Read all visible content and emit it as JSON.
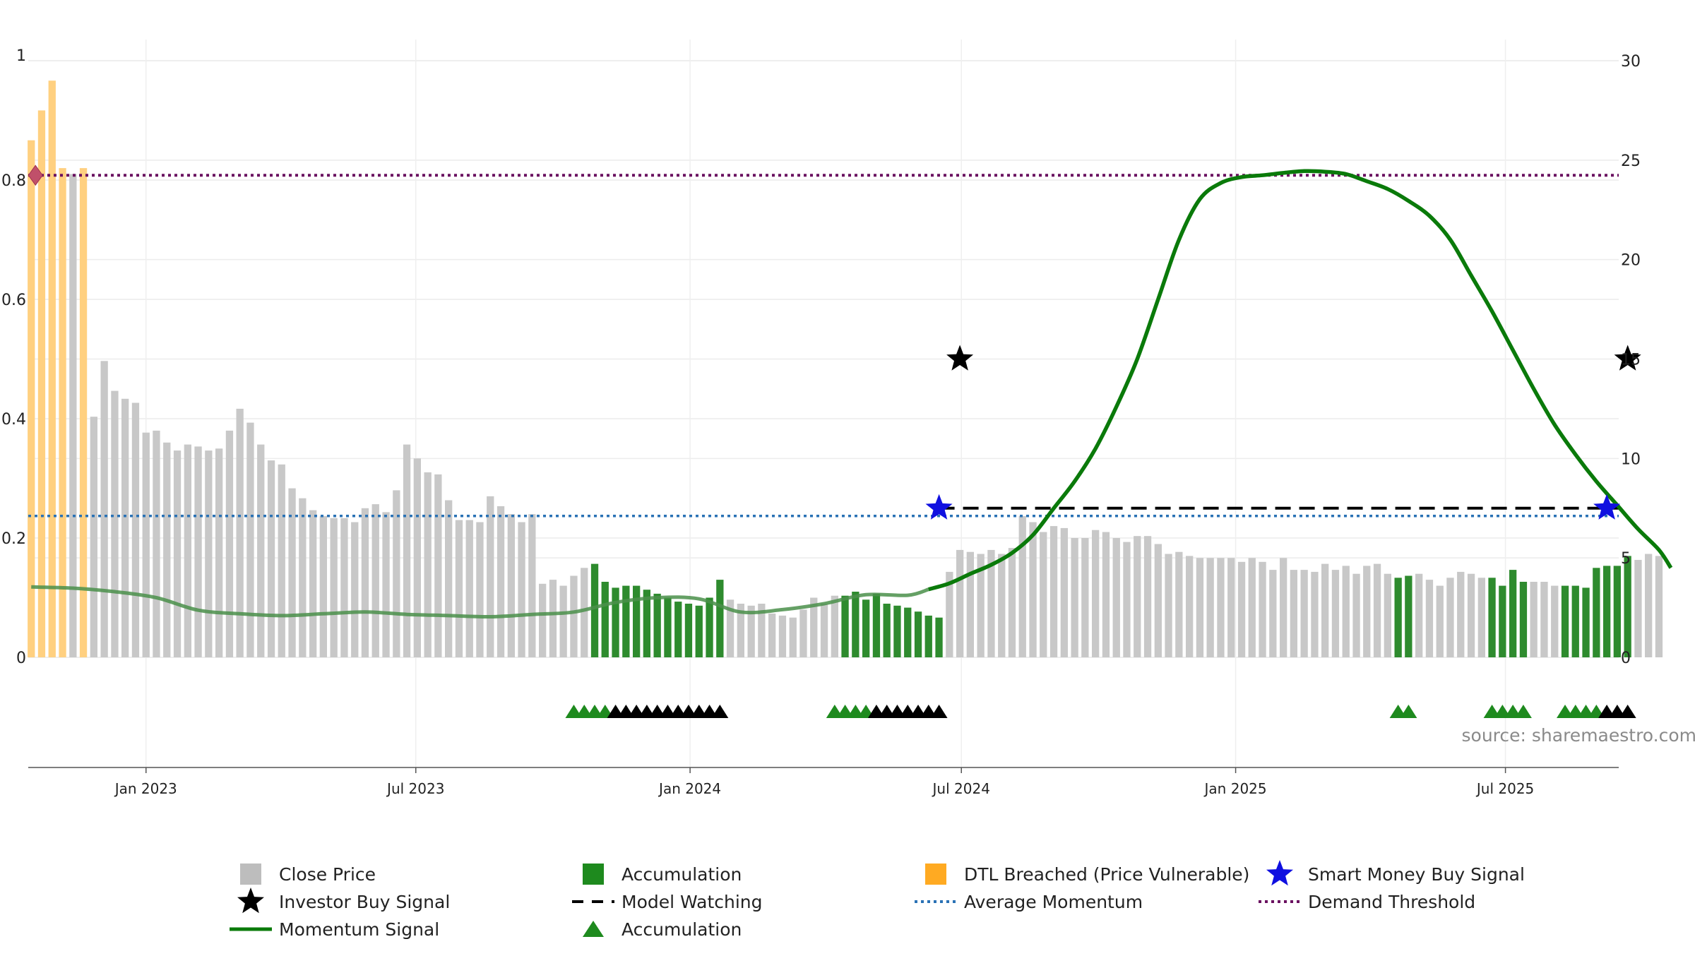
{
  "chart_data": {
    "type": "bar",
    "source_text": "source: sharemaestro.com",
    "left_axis": {
      "ylim": [
        0,
        1
      ],
      "ticks": [
        0,
        0.2,
        0.4,
        0.6,
        0.8,
        1
      ],
      "tick_labels": [
        "0",
        "0.2",
        "0.4",
        "0.6",
        "0.8",
        "1"
      ]
    },
    "right_axis": {
      "ylim": [
        0,
        30
      ],
      "ticks": [
        0,
        5,
        10,
        15,
        20,
        25,
        30
      ],
      "tick_labels": [
        "0",
        "5",
        "10",
        "15",
        "20",
        "25",
        "30"
      ]
    },
    "x_axis": {
      "range": [
        "2022-10-14",
        "2025-09-15"
      ],
      "ticks": [
        "2023-01-01",
        "2023-07-01",
        "2024-01-01",
        "2024-07-01",
        "2025-01-01",
        "2025-07-01"
      ],
      "tick_labels": [
        "Jan 2023",
        "Jul 2023",
        "Jan 2024",
        "Jul 2024",
        "Jan 2025",
        "Jul 2025"
      ]
    },
    "grid": true,
    "colors": {
      "close": "#c8c8c8",
      "accumulation": "#2e8b2e",
      "dtl": "#ffd080",
      "momentum": "#0a7a0a",
      "momentum_faded": "#4a8f4a",
      "smart_money": "#1010e0",
      "investor": "#000000",
      "model_watching": "#000000",
      "average_momentum": "#2a72b5",
      "demand_threshold": "#6a1060",
      "breach_marker": "#c0506a"
    },
    "bars": [
      [
        "2022-10-16",
        26.0,
        "dtl"
      ],
      [
        "2022-10-23",
        27.5,
        "dtl"
      ],
      [
        "2022-10-30",
        29.0,
        "dtl"
      ],
      [
        "2022-11-06",
        24.6,
        "dtl"
      ],
      [
        "2022-11-13",
        24.3,
        "close"
      ],
      [
        "2022-11-20",
        24.6,
        "dtl"
      ],
      [
        "2022-11-27",
        12.1,
        "close"
      ],
      [
        "2022-12-04",
        14.9,
        "close"
      ],
      [
        "2022-12-11",
        13.4,
        "close"
      ],
      [
        "2022-12-18",
        13.0,
        "close"
      ],
      [
        "2022-12-25",
        12.8,
        "close"
      ],
      [
        "2023-01-01",
        11.3,
        "close"
      ],
      [
        "2023-01-08",
        11.4,
        "close"
      ],
      [
        "2023-01-15",
        10.8,
        "close"
      ],
      [
        "2023-01-22",
        10.4,
        "close"
      ],
      [
        "2023-01-29",
        10.7,
        "close"
      ],
      [
        "2023-02-05",
        10.6,
        "close"
      ],
      [
        "2023-02-12",
        10.4,
        "close"
      ],
      [
        "2023-02-19",
        10.5,
        "close"
      ],
      [
        "2023-02-26",
        11.4,
        "close"
      ],
      [
        "2023-03-05",
        12.5,
        "close"
      ],
      [
        "2023-03-12",
        11.8,
        "close"
      ],
      [
        "2023-03-19",
        10.7,
        "close"
      ],
      [
        "2023-03-26",
        9.9,
        "close"
      ],
      [
        "2023-04-02",
        9.7,
        "close"
      ],
      [
        "2023-04-09",
        8.5,
        "close"
      ],
      [
        "2023-04-16",
        8.0,
        "close"
      ],
      [
        "2023-04-23",
        7.4,
        "close"
      ],
      [
        "2023-04-30",
        7.1,
        "close"
      ],
      [
        "2023-05-07",
        7.0,
        "close"
      ],
      [
        "2023-05-14",
        7.0,
        "close"
      ],
      [
        "2023-05-21",
        6.8,
        "close"
      ],
      [
        "2023-05-28",
        7.5,
        "close"
      ],
      [
        "2023-06-04",
        7.7,
        "close"
      ],
      [
        "2023-06-11",
        7.3,
        "close"
      ],
      [
        "2023-06-18",
        8.4,
        "close"
      ],
      [
        "2023-06-25",
        10.7,
        "close"
      ],
      [
        "2023-07-02",
        10.0,
        "close"
      ],
      [
        "2023-07-09",
        9.3,
        "close"
      ],
      [
        "2023-07-16",
        9.2,
        "close"
      ],
      [
        "2023-07-23",
        7.9,
        "close"
      ],
      [
        "2023-07-30",
        6.9,
        "close"
      ],
      [
        "2023-08-06",
        6.9,
        "close"
      ],
      [
        "2023-08-13",
        6.8,
        "close"
      ],
      [
        "2023-08-20",
        8.1,
        "close"
      ],
      [
        "2023-08-27",
        7.6,
        "close"
      ],
      [
        "2023-09-03",
        7.2,
        "close"
      ],
      [
        "2023-09-10",
        6.8,
        "close"
      ],
      [
        "2023-09-17",
        7.2,
        "close"
      ],
      [
        "2023-09-24",
        3.7,
        "close"
      ],
      [
        "2023-10-01",
        3.9,
        "close"
      ],
      [
        "2023-10-08",
        3.6,
        "close"
      ],
      [
        "2023-10-15",
        4.1,
        "close"
      ],
      [
        "2023-10-22",
        4.5,
        "close"
      ],
      [
        "2023-10-29",
        4.7,
        "accumulation"
      ],
      [
        "2023-11-05",
        3.8,
        "accumulation"
      ],
      [
        "2023-11-12",
        3.5,
        "accumulation"
      ],
      [
        "2023-11-19",
        3.6,
        "accumulation"
      ],
      [
        "2023-11-26",
        3.6,
        "accumulation"
      ],
      [
        "2023-12-03",
        3.4,
        "accumulation"
      ],
      [
        "2023-12-10",
        3.2,
        "accumulation"
      ],
      [
        "2023-12-17",
        3.0,
        "accumulation"
      ],
      [
        "2023-12-24",
        2.8,
        "accumulation"
      ],
      [
        "2023-12-31",
        2.7,
        "accumulation"
      ],
      [
        "2024-01-07",
        2.6,
        "accumulation"
      ],
      [
        "2024-01-14",
        3.0,
        "accumulation"
      ],
      [
        "2024-01-21",
        3.9,
        "accumulation"
      ],
      [
        "2024-01-28",
        2.9,
        "close"
      ],
      [
        "2024-02-04",
        2.7,
        "close"
      ],
      [
        "2024-02-11",
        2.6,
        "close"
      ],
      [
        "2024-02-18",
        2.7,
        "close"
      ],
      [
        "2024-02-25",
        2.2,
        "close"
      ],
      [
        "2024-03-03",
        2.1,
        "close"
      ],
      [
        "2024-03-10",
        2.0,
        "close"
      ],
      [
        "2024-03-17",
        2.4,
        "close"
      ],
      [
        "2024-03-24",
        3.0,
        "close"
      ],
      [
        "2024-03-31",
        2.7,
        "close"
      ],
      [
        "2024-04-07",
        3.1,
        "close"
      ],
      [
        "2024-04-14",
        3.1,
        "accumulation"
      ],
      [
        "2024-04-21",
        3.3,
        "accumulation"
      ],
      [
        "2024-04-28",
        2.9,
        "accumulation"
      ],
      [
        "2024-05-05",
        3.2,
        "accumulation"
      ],
      [
        "2024-05-12",
        2.7,
        "accumulation"
      ],
      [
        "2024-05-19",
        2.6,
        "accumulation"
      ],
      [
        "2024-05-26",
        2.5,
        "accumulation"
      ],
      [
        "2024-06-02",
        2.3,
        "accumulation"
      ],
      [
        "2024-06-09",
        2.1,
        "accumulation"
      ],
      [
        "2024-06-16",
        2.0,
        "accumulation"
      ],
      [
        "2024-06-23",
        4.3,
        "close"
      ],
      [
        "2024-06-30",
        5.4,
        "close"
      ],
      [
        "2024-07-07",
        5.3,
        "close"
      ],
      [
        "2024-07-14",
        5.2,
        "close"
      ],
      [
        "2024-07-21",
        5.4,
        "close"
      ],
      [
        "2024-07-28",
        5.2,
        "close"
      ],
      [
        "2024-08-04",
        5.5,
        "close"
      ],
      [
        "2024-08-11",
        7.1,
        "close"
      ],
      [
        "2024-08-18",
        6.8,
        "close"
      ],
      [
        "2024-08-25",
        6.3,
        "close"
      ],
      [
        "2024-09-01",
        6.6,
        "close"
      ],
      [
        "2024-09-08",
        6.5,
        "close"
      ],
      [
        "2024-09-15",
        6.0,
        "close"
      ],
      [
        "2024-09-22",
        6.0,
        "close"
      ],
      [
        "2024-09-29",
        6.4,
        "close"
      ],
      [
        "2024-10-06",
        6.3,
        "close"
      ],
      [
        "2024-10-13",
        6.0,
        "close"
      ],
      [
        "2024-10-20",
        5.8,
        "close"
      ],
      [
        "2024-10-27",
        6.1,
        "close"
      ],
      [
        "2024-11-03",
        6.1,
        "close"
      ],
      [
        "2024-11-10",
        5.7,
        "close"
      ],
      [
        "2024-11-17",
        5.2,
        "close"
      ],
      [
        "2024-11-24",
        5.3,
        "close"
      ],
      [
        "2024-12-01",
        5.1,
        "close"
      ],
      [
        "2024-12-08",
        5.0,
        "close"
      ],
      [
        "2024-12-15",
        5.0,
        "close"
      ],
      [
        "2024-12-22",
        5.0,
        "close"
      ],
      [
        "2024-12-29",
        5.0,
        "close"
      ],
      [
        "2025-01-05",
        4.8,
        "close"
      ],
      [
        "2025-01-12",
        5.0,
        "close"
      ],
      [
        "2025-01-19",
        4.8,
        "close"
      ],
      [
        "2025-01-26",
        4.4,
        "close"
      ],
      [
        "2025-02-02",
        5.0,
        "close"
      ],
      [
        "2025-02-09",
        4.4,
        "close"
      ],
      [
        "2025-02-16",
        4.4,
        "close"
      ],
      [
        "2025-02-23",
        4.3,
        "close"
      ],
      [
        "2025-03-02",
        4.7,
        "close"
      ],
      [
        "2025-03-09",
        4.4,
        "close"
      ],
      [
        "2025-03-16",
        4.6,
        "close"
      ],
      [
        "2025-03-23",
        4.2,
        "close"
      ],
      [
        "2025-03-30",
        4.6,
        "close"
      ],
      [
        "2025-04-06",
        4.7,
        "close"
      ],
      [
        "2025-04-13",
        4.2,
        "close"
      ],
      [
        "2025-04-20",
        4.0,
        "accumulation"
      ],
      [
        "2025-04-27",
        4.1,
        "accumulation"
      ],
      [
        "2025-05-04",
        4.2,
        "close"
      ],
      [
        "2025-05-11",
        3.9,
        "close"
      ],
      [
        "2025-05-18",
        3.6,
        "close"
      ],
      [
        "2025-05-25",
        4.0,
        "close"
      ],
      [
        "2025-06-01",
        4.3,
        "close"
      ],
      [
        "2025-06-08",
        4.2,
        "close"
      ],
      [
        "2025-06-15",
        4.0,
        "close"
      ],
      [
        "2025-06-22",
        4.0,
        "accumulation"
      ],
      [
        "2025-06-29",
        3.6,
        "accumulation"
      ],
      [
        "2025-07-06",
        4.4,
        "accumulation"
      ],
      [
        "2025-07-13",
        3.8,
        "accumulation"
      ],
      [
        "2025-07-20",
        3.8,
        "close"
      ],
      [
        "2025-07-27",
        3.8,
        "close"
      ],
      [
        "2025-08-03",
        3.6,
        "close"
      ],
      [
        "2025-08-10",
        3.6,
        "accumulation"
      ],
      [
        "2025-08-17",
        3.6,
        "accumulation"
      ],
      [
        "2025-08-24",
        3.5,
        "accumulation"
      ],
      [
        "2025-08-31",
        4.5,
        "accumulation"
      ],
      [
        "2025-09-07",
        4.6,
        "accumulation"
      ],
      [
        "2025-09-14",
        4.6,
        "accumulation"
      ],
      [
        "2025-09-21",
        5.1,
        "accumulation"
      ],
      [
        "2025-09-28",
        4.9,
        "close"
      ],
      [
        "2025-10-05",
        5.2,
        "close"
      ],
      [
        "2025-10-12",
        5.1,
        "close"
      ]
    ],
    "momentum_signal": [
      [
        "2022-10-16",
        0.118
      ],
      [
        "2022-11-13",
        0.116
      ],
      [
        "2022-12-11",
        0.11
      ],
      [
        "2023-01-08",
        0.1
      ],
      [
        "2023-02-05",
        0.079
      ],
      [
        "2023-03-05",
        0.073
      ],
      [
        "2023-04-02",
        0.07
      ],
      [
        "2023-04-30",
        0.073
      ],
      [
        "2023-05-28",
        0.076
      ],
      [
        "2023-06-25",
        0.072
      ],
      [
        "2023-07-23",
        0.07
      ],
      [
        "2023-08-20",
        0.068
      ],
      [
        "2023-09-17",
        0.072
      ],
      [
        "2023-10-15",
        0.076
      ],
      [
        "2023-11-12",
        0.092
      ],
      [
        "2023-12-10",
        0.1
      ],
      [
        "2024-01-07",
        0.098
      ],
      [
        "2024-02-04",
        0.076
      ],
      [
        "2024-03-03",
        0.08
      ],
      [
        "2024-03-31",
        0.09
      ],
      [
        "2024-04-28",
        0.105
      ],
      [
        "2024-05-26",
        0.104
      ],
      [
        "2024-06-09",
        0.114
      ],
      [
        "2024-06-23",
        0.124
      ],
      [
        "2024-07-07",
        0.14
      ],
      [
        "2024-07-21",
        0.155
      ],
      [
        "2024-08-04",
        0.175
      ],
      [
        "2024-08-18",
        0.205
      ],
      [
        "2024-09-01",
        0.25
      ],
      [
        "2024-09-15",
        0.295
      ],
      [
        "2024-09-29",
        0.35
      ],
      [
        "2024-10-13",
        0.42
      ],
      [
        "2024-10-27",
        0.5
      ],
      [
        "2024-11-10",
        0.6
      ],
      [
        "2024-11-24",
        0.7
      ],
      [
        "2024-12-08",
        0.768
      ],
      [
        "2024-12-22",
        0.795
      ],
      [
        "2025-01-05",
        0.805
      ],
      [
        "2025-01-19",
        0.808
      ],
      [
        "2025-02-02",
        0.812
      ],
      [
        "2025-02-16",
        0.815
      ],
      [
        "2025-03-02",
        0.814
      ],
      [
        "2025-03-16",
        0.81
      ],
      [
        "2025-03-30",
        0.798
      ],
      [
        "2025-04-13",
        0.785
      ],
      [
        "2025-04-27",
        0.765
      ],
      [
        "2025-05-11",
        0.74
      ],
      [
        "2025-05-25",
        0.7
      ],
      [
        "2025-06-08",
        0.64
      ],
      [
        "2025-06-22",
        0.58
      ],
      [
        "2025-07-06",
        0.515
      ],
      [
        "2025-07-20",
        0.45
      ],
      [
        "2025-08-03",
        0.39
      ],
      [
        "2025-08-17",
        0.34
      ],
      [
        "2025-08-31",
        0.295
      ],
      [
        "2025-09-14",
        0.255
      ],
      [
        "2025-09-28",
        0.215
      ],
      [
        "2025-10-12",
        0.18
      ],
      [
        "2025-10-20",
        0.15
      ]
    ],
    "momentum_dates_note": "",
    "avg_momentum": 0.237,
    "demand_threshold": 0.808,
    "model_watching": {
      "from": "2024-06-16",
      "to": "2025-09-14",
      "value": 0.25
    },
    "smart_money_signals": [
      [
        "2024-06-16",
        0.25
      ],
      [
        "2025-09-07",
        0.25
      ]
    ],
    "investor_signals": [
      [
        "2024-06-30",
        0.5
      ],
      [
        "2025-09-21",
        0.5
      ]
    ],
    "breach_marker": [
      "2022-10-16",
      0.808
    ],
    "triangles": [
      [
        "2023-10-15",
        "accumulation"
      ],
      [
        "2023-10-22",
        "accumulation"
      ],
      [
        "2023-10-29",
        "accumulation"
      ],
      [
        "2023-11-05",
        "accumulation"
      ],
      [
        "2023-11-12",
        "watch"
      ],
      [
        "2023-11-19",
        "watch"
      ],
      [
        "2023-11-26",
        "watch"
      ],
      [
        "2023-12-03",
        "watch"
      ],
      [
        "2023-12-10",
        "watch"
      ],
      [
        "2023-12-17",
        "watch"
      ],
      [
        "2023-12-24",
        "watch"
      ],
      [
        "2023-12-31",
        "watch"
      ],
      [
        "2024-01-07",
        "watch"
      ],
      [
        "2024-01-14",
        "watch"
      ],
      [
        "2024-01-21",
        "watch"
      ],
      [
        "2024-04-07",
        "accumulation"
      ],
      [
        "2024-04-14",
        "accumulation"
      ],
      [
        "2024-04-21",
        "accumulation"
      ],
      [
        "2024-04-28",
        "accumulation"
      ],
      [
        "2024-05-05",
        "watch"
      ],
      [
        "2024-05-12",
        "watch"
      ],
      [
        "2024-05-19",
        "watch"
      ],
      [
        "2024-05-26",
        "watch"
      ],
      [
        "2024-06-02",
        "watch"
      ],
      [
        "2024-06-09",
        "watch"
      ],
      [
        "2024-06-16",
        "watch"
      ],
      [
        "2025-04-20",
        "accumulation"
      ],
      [
        "2025-04-27",
        "accumulation"
      ],
      [
        "2025-06-22",
        "accumulation"
      ],
      [
        "2025-06-29",
        "accumulation"
      ],
      [
        "2025-07-06",
        "accumulation"
      ],
      [
        "2025-07-13",
        "accumulation"
      ],
      [
        "2025-08-10",
        "accumulation"
      ],
      [
        "2025-08-17",
        "accumulation"
      ],
      [
        "2025-08-24",
        "accumulation"
      ],
      [
        "2025-08-31",
        "accumulation"
      ],
      [
        "2025-09-07",
        "watch"
      ],
      [
        "2025-09-14",
        "watch"
      ],
      [
        "2025-09-21",
        "watch"
      ]
    ],
    "legend": [
      {
        "label": "Close Price",
        "symbol": "square",
        "color": "#bdbdbd"
      },
      {
        "label": "Investor Buy Signal",
        "symbol": "star",
        "color": "#000000"
      },
      {
        "label": "Momentum Signal",
        "symbol": "line",
        "color": "#0a7a0a"
      },
      {
        "label": "Accumulation",
        "symbol": "square",
        "color": "#1e8a1e"
      },
      {
        "label": "Model Watching",
        "symbol": "dash",
        "color": "#000000"
      },
      {
        "label": "Accumulation",
        "symbol": "triangle",
        "color": "#1e8a1e"
      },
      {
        "label": "DTL Breached (Price Vulnerable)",
        "symbol": "square",
        "color": "#ffaa22"
      },
      {
        "label": "Average Momentum",
        "symbol": "dotted",
        "color": "#2a72b5"
      },
      {
        "label": "Smart Money Buy Signal",
        "symbol": "star",
        "color": "#1010e0"
      },
      {
        "label": "Demand Threshold",
        "symbol": "dotted",
        "color": "#6a1060"
      }
    ]
  }
}
